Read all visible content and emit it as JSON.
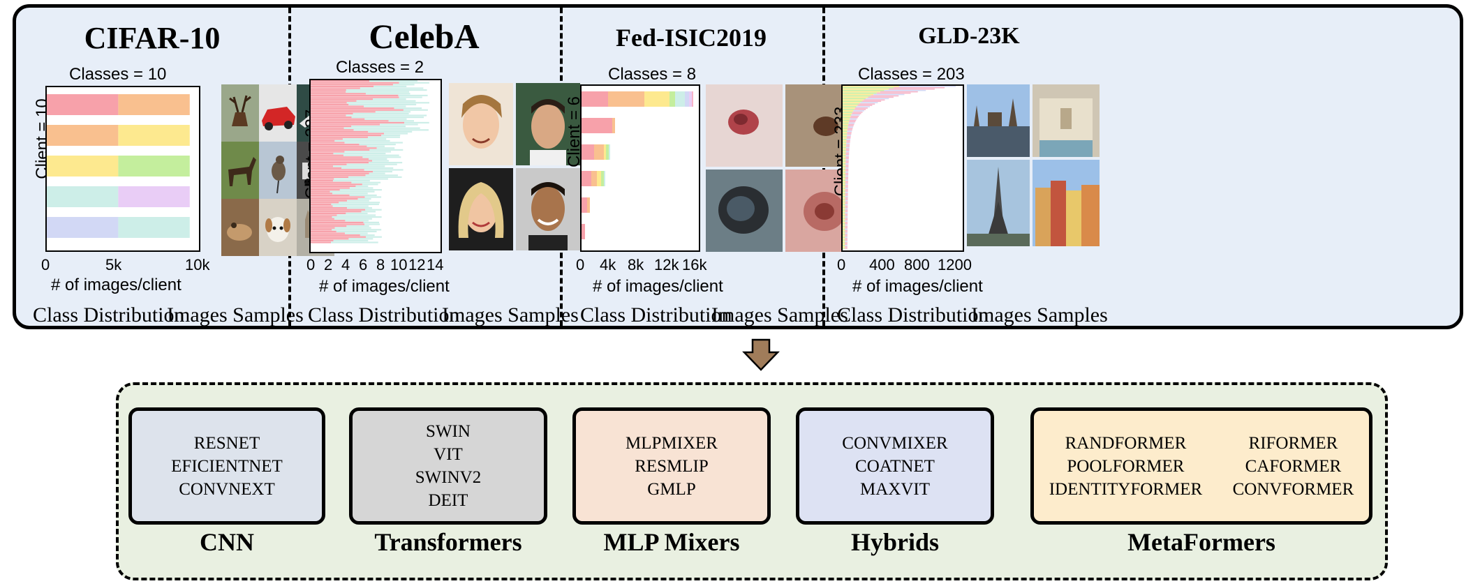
{
  "datasets": [
    {
      "title": "CIFAR-10",
      "classes_text": "Classes = 10",
      "client_text": "Client = 10",
      "xlabel": "# of images/client",
      "xticks": [
        "0",
        "5k",
        "10k"
      ],
      "dist_caption": "Class Distribution",
      "samples_caption": "Images Samples"
    },
    {
      "title": "CelebA",
      "classes_text": "Classes = 2",
      "client_text": "Client = 227",
      "xlabel": "# of images/client",
      "xticks": [
        "0",
        "2",
        "4",
        "6",
        "8",
        "10",
        "12",
        "14"
      ],
      "dist_caption": "Class Distribution",
      "samples_caption": "Images Samples"
    },
    {
      "title": "Fed-ISIC2019",
      "classes_text": "Classes = 8",
      "client_text": "Client = 6",
      "xlabel": "# of images/client",
      "xticks": [
        "0",
        "4k",
        "8k",
        "12k",
        "16k"
      ],
      "dist_caption": "Class Distribution",
      "samples_caption": "Images Samples"
    },
    {
      "title": "GLD-23K",
      "classes_text": "Classes = 203",
      "client_text": "Client = 233",
      "xlabel": "# of images/client",
      "xticks": [
        "0",
        "400",
        "800",
        "1200"
      ],
      "dist_caption": "Class Distribution",
      "samples_caption": "Images Samples"
    }
  ],
  "families": [
    {
      "label": "CNN",
      "models": [
        "RESNET",
        "EFICIENTNET",
        "CONVNEXT"
      ],
      "color": "#dde3ec"
    },
    {
      "label": "Transformers",
      "models": [
        "SWIN",
        "VIT",
        "SWINV2",
        "DEIT"
      ],
      "color": "#d6d6d6"
    },
    {
      "label": "MLP Mixers",
      "models": [
        "MLPMIXER",
        "RESMLIP",
        "GMLP"
      ],
      "color": "#f8e3d4"
    },
    {
      "label": "Hybrids",
      "models": [
        "CONVMIXER",
        "COATNET",
        "MAXVIT"
      ],
      "color": "#dde2f3"
    },
    {
      "label": "MetaFormers",
      "models_left": [
        "RANDFORMER",
        "POOLFORMER",
        "IDENTITYFORMER"
      ],
      "models_right": [
        "RIFORMER",
        "CAFORMER",
        "CONVFORMER"
      ],
      "color": "#fdeccc"
    }
  ],
  "colors": {
    "top_panel": "#e7eef8",
    "bottom_panel": "#e9f0e1",
    "arrow": "#a07c5a",
    "bar_palette": [
      "#f7a1aa",
      "#f9c08f",
      "#fde98f",
      "#c4ee9d",
      "#cdeee8",
      "#d2d8f5",
      "#e9cdf6",
      "#f6b3c7"
    ]
  }
}
